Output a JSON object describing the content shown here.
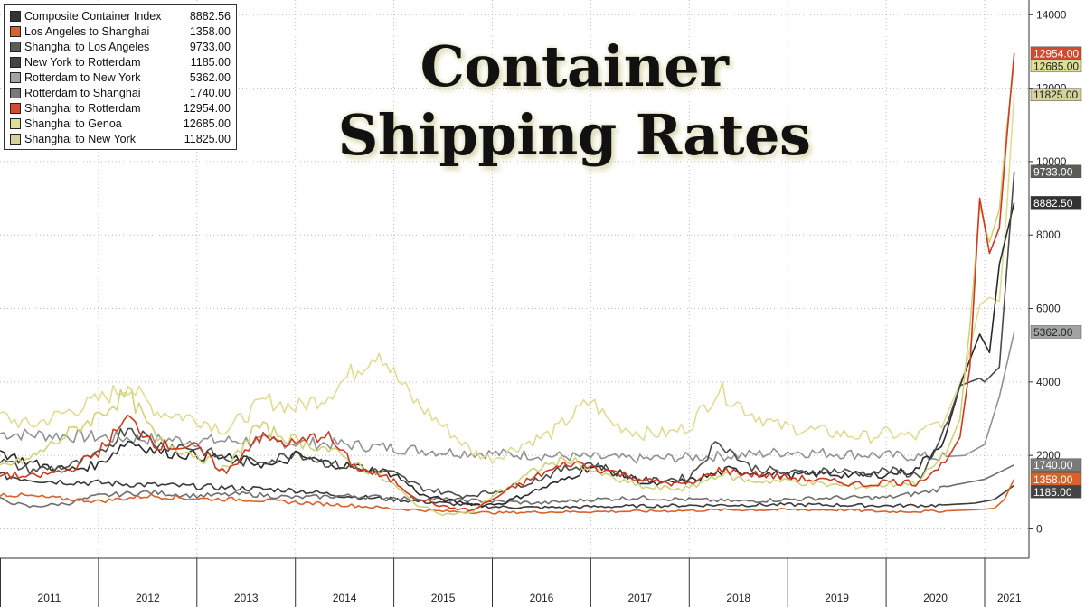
{
  "title_lines": [
    "Container",
    "Shipping Rates"
  ],
  "chart_data": {
    "type": "line",
    "x_ticks": [
      "2011",
      "2012",
      "2013",
      "2014",
      "2015",
      "2016",
      "2017",
      "2018",
      "2019",
      "2020",
      "2021"
    ],
    "y_ticks": [
      "0",
      "2000",
      "4000",
      "6000",
      "8000",
      "10000",
      "12000",
      "14000"
    ],
    "ylim": [
      -800,
      14400
    ],
    "xlim": [
      2011.0,
      2021.45
    ],
    "grid": true,
    "legend_position": "top-left",
    "series": [
      {
        "name": "Composite Container Index",
        "last": "8882.56",
        "color": "#2a2a2a",
        "swatch": "#333333",
        "label_text": "#ffffff",
        "points": [
          [
            2011.0,
            2100
          ],
          [
            2011.3,
            1800
          ],
          [
            2011.7,
            1600
          ],
          [
            2012.0,
            1750
          ],
          [
            2012.3,
            2400
          ],
          [
            2012.6,
            2100
          ],
          [
            2013.0,
            2000
          ],
          [
            2013.4,
            1900
          ],
          [
            2013.8,
            1700
          ],
          [
            2014.0,
            2000
          ],
          [
            2014.3,
            1800
          ],
          [
            2014.6,
            1700
          ],
          [
            2015.0,
            1500
          ],
          [
            2015.3,
            900
          ],
          [
            2015.6,
            750
          ],
          [
            2015.9,
            650
          ],
          [
            2016.1,
            700
          ],
          [
            2016.4,
            1000
          ],
          [
            2016.7,
            1300
          ],
          [
            2017.0,
            1700
          ],
          [
            2017.3,
            1500
          ],
          [
            2017.6,
            1200
          ],
          [
            2018.0,
            1300
          ],
          [
            2018.4,
            1600
          ],
          [
            2018.8,
            1500
          ],
          [
            2019.0,
            1450
          ],
          [
            2019.4,
            1500
          ],
          [
            2019.8,
            1450
          ],
          [
            2020.0,
            1500
          ],
          [
            2020.3,
            1600
          ],
          [
            2020.6,
            2500
          ],
          [
            2020.75,
            3900
          ],
          [
            2020.95,
            5300
          ],
          [
            2021.05,
            4800
          ],
          [
            2021.15,
            7200
          ],
          [
            2021.3,
            8882
          ]
        ]
      },
      {
        "name": "Los Angeles to Shanghai",
        "last": "1358.00",
        "color": "#d9622c",
        "swatch": "#d9622c",
        "label_text": "#ffffff",
        "points": [
          [
            2011.0,
            950
          ],
          [
            2011.5,
            850
          ],
          [
            2012.0,
            750
          ],
          [
            2012.5,
            900
          ],
          [
            2013.0,
            820
          ],
          [
            2013.5,
            800
          ],
          [
            2014.0,
            720
          ],
          [
            2014.5,
            650
          ],
          [
            2015.0,
            550
          ],
          [
            2015.5,
            480
          ],
          [
            2016.0,
            440
          ],
          [
            2016.5,
            460
          ],
          [
            2017.0,
            470
          ],
          [
            2017.5,
            480
          ],
          [
            2018.0,
            500
          ],
          [
            2018.5,
            520
          ],
          [
            2019.0,
            520
          ],
          [
            2019.5,
            520
          ],
          [
            2020.0,
            470
          ],
          [
            2020.5,
            480
          ],
          [
            2020.9,
            520
          ],
          [
            2021.1,
            560
          ],
          [
            2021.2,
            800
          ],
          [
            2021.3,
            1358
          ]
        ]
      },
      {
        "name": "Shanghai to Los Angeles",
        "last": "9733.00",
        "color": "#4a4d46",
        "swatch": "#5a5d55",
        "label_text": "#ffffff",
        "points": [
          [
            2011.0,
            1850
          ],
          [
            2011.3,
            1600
          ],
          [
            2011.7,
            1700
          ],
          [
            2012.0,
            2000
          ],
          [
            2012.3,
            2800
          ],
          [
            2012.6,
            2300
          ],
          [
            2013.0,
            2200
          ],
          [
            2013.4,
            1800
          ],
          [
            2013.8,
            1900
          ],
          [
            2014.0,
            2100
          ],
          [
            2014.3,
            1800
          ],
          [
            2014.7,
            1600
          ],
          [
            2015.0,
            1500
          ],
          [
            2015.3,
            1100
          ],
          [
            2015.7,
            900
          ],
          [
            2016.0,
            1000
          ],
          [
            2016.4,
            1300
          ],
          [
            2016.7,
            1600
          ],
          [
            2017.0,
            1800
          ],
          [
            2017.3,
            1500
          ],
          [
            2017.6,
            1300
          ],
          [
            2018.0,
            1400
          ],
          [
            2018.3,
            2400
          ],
          [
            2018.6,
            1700
          ],
          [
            2019.0,
            1500
          ],
          [
            2019.4,
            1600
          ],
          [
            2019.8,
            1500
          ],
          [
            2020.0,
            1600
          ],
          [
            2020.35,
            1450
          ],
          [
            2020.55,
            2300
          ],
          [
            2020.75,
            3900
          ],
          [
            2020.95,
            4100
          ],
          [
            2021.0,
            4000
          ],
          [
            2021.15,
            4400
          ],
          [
            2021.3,
            9733
          ]
        ]
      },
      {
        "name": "New York to Rotterdam",
        "last": "1185.00",
        "color": "#3a3a3a",
        "swatch": "#444444",
        "label_text": "#ffffff",
        "points": [
          [
            2011.0,
            1450
          ],
          [
            2011.5,
            1300
          ],
          [
            2012.0,
            1250
          ],
          [
            2012.5,
            1200
          ],
          [
            2013.0,
            1150
          ],
          [
            2013.5,
            1100
          ],
          [
            2014.0,
            1050
          ],
          [
            2014.5,
            900
          ],
          [
            2015.0,
            800
          ],
          [
            2015.5,
            700
          ],
          [
            2016.0,
            600
          ],
          [
            2016.5,
            580
          ],
          [
            2017.0,
            600
          ],
          [
            2017.5,
            620
          ],
          [
            2018.0,
            640
          ],
          [
            2018.5,
            650
          ],
          [
            2019.0,
            660
          ],
          [
            2019.5,
            650
          ],
          [
            2020.0,
            630
          ],
          [
            2020.5,
            640
          ],
          [
            2020.9,
            700
          ],
          [
            2021.1,
            800
          ],
          [
            2021.3,
            1185
          ]
        ]
      },
      {
        "name": "Rotterdam to New York",
        "last": "5362.00",
        "color": "#8e9491",
        "swatch": "#a0a5a2",
        "label_text": "#222222",
        "points": [
          [
            2011.0,
            2600
          ],
          [
            2011.5,
            2550
          ],
          [
            2012.0,
            2500
          ],
          [
            2012.5,
            2450
          ],
          [
            2013.0,
            2400
          ],
          [
            2013.5,
            2400
          ],
          [
            2014.0,
            2350
          ],
          [
            2014.5,
            2300
          ],
          [
            2015.0,
            2200
          ],
          [
            2015.5,
            2100
          ],
          [
            2016.0,
            2050
          ],
          [
            2016.5,
            2000
          ],
          [
            2017.0,
            1950
          ],
          [
            2017.5,
            1900
          ],
          [
            2018.0,
            1950
          ],
          [
            2018.5,
            2000
          ],
          [
            2019.0,
            2100
          ],
          [
            2019.5,
            2050
          ],
          [
            2020.0,
            2000
          ],
          [
            2020.5,
            1950
          ],
          [
            2020.8,
            2000
          ],
          [
            2021.0,
            2300
          ],
          [
            2021.15,
            3600
          ],
          [
            2021.3,
            5362
          ]
        ]
      },
      {
        "name": "Rotterdam to Shanghai",
        "last": "1740.00",
        "color": "#6e6e6e",
        "swatch": "#7a7a7a",
        "label_text": "#ffffff",
        "points": [
          [
            2011.0,
            800
          ],
          [
            2011.3,
            600
          ],
          [
            2011.7,
            700
          ],
          [
            2012.0,
            900
          ],
          [
            2012.5,
            1000
          ],
          [
            2013.0,
            900
          ],
          [
            2013.5,
            950
          ],
          [
            2014.0,
            850
          ],
          [
            2014.5,
            900
          ],
          [
            2015.0,
            850
          ],
          [
            2015.5,
            800
          ],
          [
            2016.0,
            750
          ],
          [
            2016.5,
            700
          ],
          [
            2017.0,
            800
          ],
          [
            2017.5,
            850
          ],
          [
            2018.0,
            800
          ],
          [
            2018.5,
            750
          ],
          [
            2019.0,
            800
          ],
          [
            2019.5,
            850
          ],
          [
            2020.0,
            850
          ],
          [
            2020.4,
            1000
          ],
          [
            2020.7,
            1200
          ],
          [
            2021.0,
            1350
          ],
          [
            2021.3,
            1740
          ]
        ]
      },
      {
        "name": "Shanghai to Rotterdam",
        "last": "12954.00",
        "color": "#cc3a22",
        "swatch": "#d24a30",
        "label_text": "#ffffff",
        "points": [
          [
            2011.0,
            1500
          ],
          [
            2011.3,
            1400
          ],
          [
            2011.7,
            1600
          ],
          [
            2012.0,
            2100
          ],
          [
            2012.3,
            3000
          ],
          [
            2012.6,
            2300
          ],
          [
            2013.0,
            2200
          ],
          [
            2013.3,
            1500
          ],
          [
            2013.6,
            2500
          ],
          [
            2014.0,
            2300
          ],
          [
            2014.3,
            2600
          ],
          [
            2014.6,
            1700
          ],
          [
            2015.0,
            1300
          ],
          [
            2015.2,
            900
          ],
          [
            2015.5,
            600
          ],
          [
            2015.8,
            500
          ],
          [
            2016.0,
            800
          ],
          [
            2016.2,
            1100
          ],
          [
            2016.5,
            1500
          ],
          [
            2016.8,
            1800
          ],
          [
            2017.0,
            1700
          ],
          [
            2017.3,
            1500
          ],
          [
            2017.6,
            1300
          ],
          [
            2018.0,
            1200
          ],
          [
            2018.3,
            1600
          ],
          [
            2018.6,
            1500
          ],
          [
            2019.0,
            1400
          ],
          [
            2019.4,
            1300
          ],
          [
            2019.8,
            1200
          ],
          [
            2020.0,
            1300
          ],
          [
            2020.3,
            1250
          ],
          [
            2020.6,
            1800
          ],
          [
            2020.75,
            2500
          ],
          [
            2020.85,
            4400
          ],
          [
            2020.95,
            9000
          ],
          [
            2021.05,
            7500
          ],
          [
            2021.15,
            8200
          ],
          [
            2021.22,
            10500
          ],
          [
            2021.3,
            12954
          ]
        ]
      },
      {
        "name": "Shanghai to Genoa",
        "last": "12685.00",
        "color": "#d2d27a",
        "swatch": "#dede96",
        "label_text": "#222222",
        "points": [
          [
            2011.0,
            1700
          ],
          [
            2011.3,
            1900
          ],
          [
            2011.7,
            2600
          ],
          [
            2012.0,
            3100
          ],
          [
            2012.3,
            3700
          ],
          [
            2012.6,
            2400
          ],
          [
            2013.0,
            2000
          ],
          [
            2013.3,
            1600
          ],
          [
            2013.6,
            2800
          ],
          [
            2014.0,
            2400
          ],
          [
            2014.3,
            2200
          ],
          [
            2014.6,
            1800
          ],
          [
            2015.0,
            1200
          ],
          [
            2015.2,
            700
          ],
          [
            2015.5,
            400
          ],
          [
            2015.8,
            450
          ],
          [
            2016.0,
            900
          ],
          [
            2016.2,
            1200
          ],
          [
            2016.5,
            1700
          ],
          [
            2016.8,
            1900
          ],
          [
            2017.0,
            1600
          ],
          [
            2017.3,
            1300
          ],
          [
            2017.6,
            1100
          ],
          [
            2018.0,
            1100
          ],
          [
            2018.3,
            1500
          ],
          [
            2018.6,
            1300
          ],
          [
            2019.0,
            1300
          ],
          [
            2019.4,
            1200
          ],
          [
            2019.8,
            1150
          ],
          [
            2020.0,
            1200
          ],
          [
            2020.3,
            1250
          ],
          [
            2020.6,
            2000
          ],
          [
            2020.75,
            3000
          ],
          [
            2020.85,
            5500
          ],
          [
            2020.95,
            8800
          ],
          [
            2021.05,
            7800
          ],
          [
            2021.15,
            8700
          ],
          [
            2021.22,
            10800
          ],
          [
            2021.3,
            12685
          ]
        ]
      },
      {
        "name": "Shanghai to New York",
        "last": "11825.00",
        "color": "#e0dc96",
        "swatch": "#d6d39a",
        "label_text": "#222222",
        "points": [
          [
            2011.0,
            3100
          ],
          [
            2011.3,
            2800
          ],
          [
            2011.7,
            3200
          ],
          [
            2012.0,
            3500
          ],
          [
            2012.3,
            3900
          ],
          [
            2012.6,
            3200
          ],
          [
            2013.0,
            3000
          ],
          [
            2013.3,
            2700
          ],
          [
            2013.7,
            3500
          ],
          [
            2014.0,
            3300
          ],
          [
            2014.3,
            3600
          ],
          [
            2014.6,
            4300
          ],
          [
            2014.85,
            4900
          ],
          [
            2015.0,
            4200
          ],
          [
            2015.2,
            3500
          ],
          [
            2015.5,
            2800
          ],
          [
            2015.8,
            2100
          ],
          [
            2016.0,
            1900
          ],
          [
            2016.3,
            2300
          ],
          [
            2016.6,
            2600
          ],
          [
            2017.0,
            3500
          ],
          [
            2017.2,
            2900
          ],
          [
            2017.5,
            2600
          ],
          [
            2017.8,
            2600
          ],
          [
            2018.0,
            2800
          ],
          [
            2018.3,
            3800
          ],
          [
            2018.6,
            3200
          ],
          [
            2018.9,
            2800
          ],
          [
            2019.2,
            2700
          ],
          [
            2019.5,
            2600
          ],
          [
            2019.8,
            2500
          ],
          [
            2020.0,
            2600
          ],
          [
            2020.3,
            2500
          ],
          [
            2020.6,
            3000
          ],
          [
            2020.8,
            4300
          ],
          [
            2020.95,
            6100
          ],
          [
            2021.05,
            6300
          ],
          [
            2021.15,
            6200
          ],
          [
            2021.22,
            8500
          ],
          [
            2021.3,
            11825
          ]
        ]
      }
    ]
  }
}
